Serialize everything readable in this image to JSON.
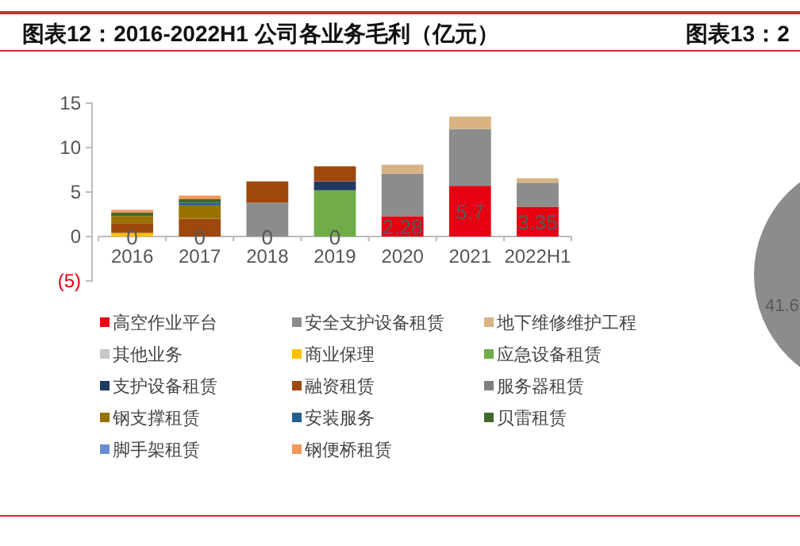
{
  "chart_data": [
    {
      "type": "bar",
      "title": "图表12：2016-2022H1 公司各业务毛利（亿元）",
      "categories": [
        "2016",
        "2017",
        "2018",
        "2019",
        "2020",
        "2021",
        "2022H1"
      ],
      "stacked": true,
      "legend": "bottom",
      "ylim": [
        -5,
        15
      ],
      "yticks": [
        {
          "value": -5,
          "label": "(5)"
        },
        0,
        5,
        10,
        15
      ],
      "series": [
        {
          "name": "高空作业平台",
          "color": "#e60012",
          "values": [
            0,
            0,
            0,
            0,
            2.28,
            5.7,
            3.35
          ],
          "value_labels": [
            "0",
            "0",
            "0",
            "0",
            "2.28",
            "5.7",
            "3.35"
          ]
        },
        {
          "name": "安全支护设备租赁",
          "color": "#8c8c8c",
          "values": [
            0,
            0,
            3.8,
            0,
            4.8,
            6.4,
            2.7
          ]
        },
        {
          "name": "地下维修维护工程",
          "color": "#d9b382",
          "values": [
            0,
            0,
            0,
            0,
            1.0,
            1.4,
            0.5
          ]
        },
        {
          "name": "其他业务",
          "color": "#c8c8c8",
          "values": [
            0,
            0,
            0,
            0,
            0,
            0,
            0
          ]
        },
        {
          "name": "商业保理",
          "color": "#ffc000",
          "values": [
            0.4,
            0,
            0,
            0,
            0,
            0,
            0
          ]
        },
        {
          "name": "应急设备租赁",
          "color": "#70ad47",
          "values": [
            0,
            0,
            0,
            5.2,
            0,
            0,
            0
          ]
        },
        {
          "name": "支护设备租赁",
          "color": "#203864",
          "values": [
            0,
            0,
            0,
            1.0,
            0,
            0,
            0
          ]
        },
        {
          "name": "融资租赁",
          "color": "#9e480e",
          "values": [
            1.1,
            2.0,
            2.4,
            1.7,
            0,
            0,
            0
          ]
        },
        {
          "name": "服务器租赁",
          "color": "#7f7f7f",
          "values": [
            0,
            0,
            0,
            0,
            0,
            0,
            0
          ]
        },
        {
          "name": "钢支撑租赁",
          "color": "#997300",
          "values": [
            0.8,
            1.5,
            0,
            0,
            0,
            0,
            0
          ]
        },
        {
          "name": "安装服务",
          "color": "#255e91",
          "values": [
            0,
            0.3,
            0,
            0,
            0,
            0,
            0
          ]
        },
        {
          "name": "贝雷租赁",
          "color": "#43682b",
          "values": [
            0.4,
            0.4,
            0,
            0,
            0,
            0,
            0
          ]
        },
        {
          "name": "脚手架租赁",
          "color": "#698ed0",
          "values": [
            0,
            0,
            0,
            0,
            0,
            0,
            0
          ]
        },
        {
          "name": "钢便桥租赁",
          "color": "#f1975a",
          "values": [
            0.3,
            0.4,
            0,
            0,
            0,
            0,
            0
          ]
        }
      ]
    },
    {
      "type": "other",
      "title": "图表13：2",
      "annotations": [
        "41.6"
      ]
    }
  ]
}
